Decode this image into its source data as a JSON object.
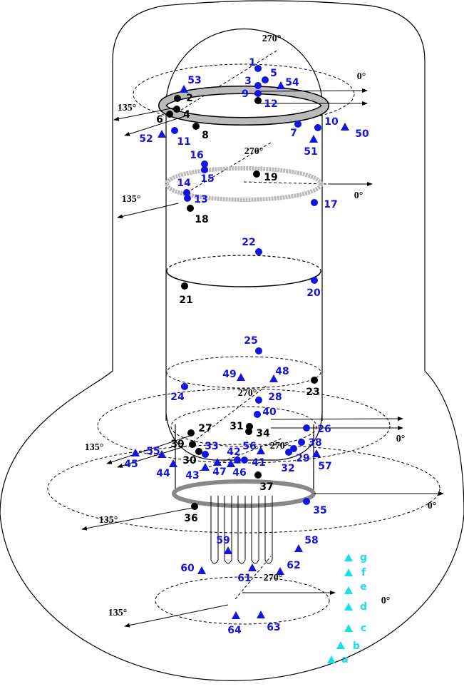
{
  "points": [
    "1",
    "2",
    "3",
    "4",
    "5",
    "6",
    "7",
    "8",
    "9",
    "10",
    "11",
    "12",
    "13",
    "14",
    "15",
    "16",
    "17",
    "18",
    "19",
    "20",
    "21",
    "22",
    "23",
    "24",
    "25",
    "26",
    "27",
    "28",
    "29",
    "30",
    "31",
    "32",
    "33",
    "34",
    "35",
    "36",
    "37",
    "38",
    "39",
    "40",
    "41",
    "42",
    "43",
    "44",
    "45",
    "46",
    "47",
    "48",
    "49",
    "50",
    "51",
    "52",
    "53",
    "54",
    "55",
    "56",
    "57",
    "58",
    "59",
    "60",
    "61",
    "62",
    "63",
    "64"
  ],
  "legend_points": [
    "g",
    "f",
    "e",
    "d",
    "c",
    "b",
    "a"
  ],
  "angles": [
    "270°",
    "0°",
    "135°",
    "270°",
    "0°",
    "135°",
    "270°",
    "0°",
    "135°",
    "270°",
    "0°",
    "135°",
    "270°",
    "0°",
    "135°"
  ]
}
